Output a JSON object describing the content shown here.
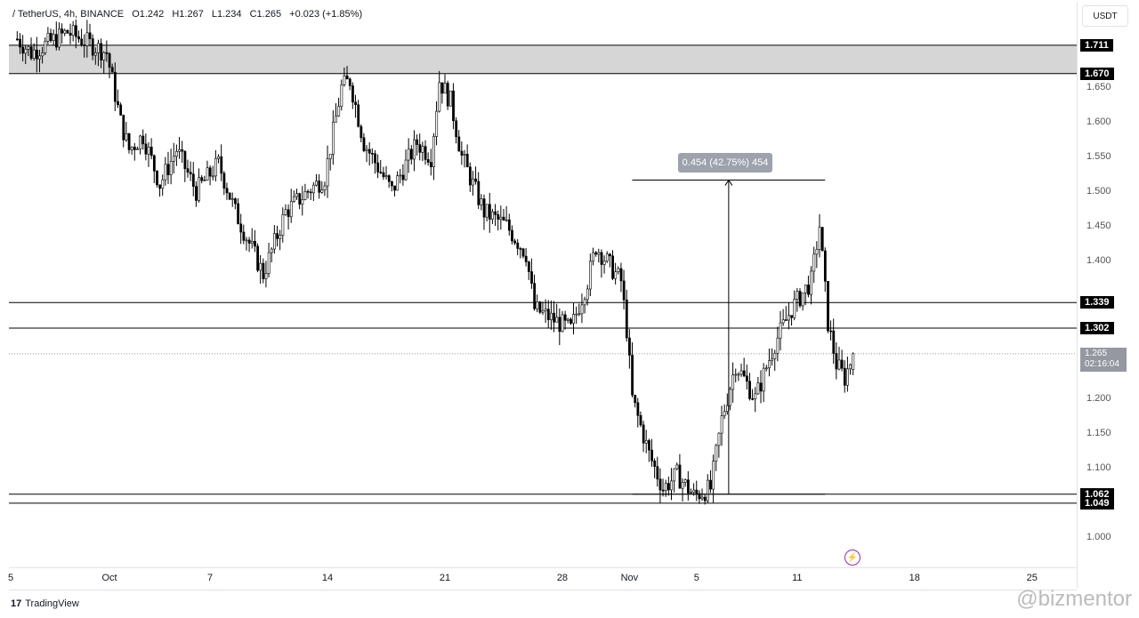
{
  "legend": {
    "symbol": "/ TetherUS, 4h, BINANCE",
    "open": "O1.242",
    "high": "H1.267",
    "low": "L1.234",
    "close": "C1.265",
    "change": "+0.023 (+1.85%)"
  },
  "price_axis": {
    "currency": "USDT",
    "current_price": "1.265",
    "countdown": "02:16:04"
  },
  "branding": {
    "logo": "TradingView",
    "watermark": "@bizmentor"
  },
  "measure": {
    "label": "0.454 (42.75%) 454"
  },
  "chart_data": {
    "type": "candlestick",
    "timeframe": "4h",
    "ylim": [
      0.95,
      1.76
    ],
    "y_ticks": [
      "1.650",
      "1.600",
      "1.550",
      "1.500",
      "1.450",
      "1.400",
      "1.200",
      "1.150",
      "1.100",
      "1.000"
    ],
    "x_ticks": [
      "5",
      "Oct",
      "7",
      "14",
      "21",
      "28",
      "Nov",
      "5",
      "11",
      "18",
      "25"
    ],
    "x_tick_dates": [
      "09-25",
      "10-01",
      "10-07",
      "10-14",
      "10-21",
      "10-28",
      "11-01",
      "11-05",
      "11-11",
      "11-18",
      "11-25"
    ],
    "horizontal_levels": [
      "1.711",
      "1.670",
      "1.339",
      "1.302",
      "1.062",
      "1.049"
    ],
    "zone": [
      1.67,
      1.711
    ],
    "measure_range": {
      "from": 1.062,
      "to": 1.516,
      "start": "11-01T04",
      "end": "11-12T16"
    },
    "last_candle": {
      "open": 1.242,
      "high": 1.267,
      "low": 1.234,
      "close": 1.265
    },
    "colors": {
      "candle": "#000000",
      "zone": "#d6d6d6",
      "line": "#000000",
      "current": "#9598a1",
      "accent": "#9c27b0"
    },
    "price_path": [
      [
        "09-25T12",
        1.72
      ],
      [
        "09-26T08",
        1.7
      ],
      [
        "09-28T12",
        1.73
      ],
      [
        "09-30T20",
        1.7
      ],
      [
        "10-01T16",
        1.6
      ],
      [
        "10-02T04",
        1.56
      ],
      [
        "10-03T00",
        1.58
      ],
      [
        "10-04T00",
        1.51
      ],
      [
        "10-05T00",
        1.56
      ],
      [
        "10-06T04",
        1.5
      ],
      [
        "10-07T12",
        1.54
      ],
      [
        "10-08T12",
        1.47
      ],
      [
        "10-10T04",
        1.38
      ],
      [
        "10-11T12",
        1.47
      ],
      [
        "10-12T20",
        1.5
      ],
      [
        "10-13T20",
        1.52
      ],
      [
        "10-14T20",
        1.65
      ],
      [
        "10-15T08",
        1.66
      ],
      [
        "10-16T04",
        1.57
      ],
      [
        "10-17T20",
        1.5
      ],
      [
        "10-19T08",
        1.57
      ],
      [
        "10-20T04",
        1.55
      ],
      [
        "10-20T16",
        1.66
      ],
      [
        "10-21T08",
        1.63
      ],
      [
        "10-22T00",
        1.55
      ],
      [
        "10-23T08",
        1.47
      ],
      [
        "10-24T16",
        1.45
      ],
      [
        "10-25T20",
        1.41
      ],
      [
        "10-26T08",
        1.33
      ],
      [
        "10-28T12",
        1.3
      ],
      [
        "10-29T12",
        1.37
      ],
      [
        "10-30T00",
        1.42
      ],
      [
        "10-31T12",
        1.37
      ],
      [
        "10-31T20",
        1.3
      ],
      [
        "11-01T04",
        1.2
      ],
      [
        "11-02T04",
        1.12
      ],
      [
        "11-03T00",
        1.07
      ],
      [
        "11-03T20",
        1.09
      ],
      [
        "11-04T20",
        1.06
      ],
      [
        "11-05T20",
        1.07
      ],
      [
        "11-06T12",
        1.17
      ],
      [
        "11-07T08",
        1.25
      ],
      [
        "11-08T12",
        1.2
      ],
      [
        "11-09T16",
        1.28
      ],
      [
        "11-10T16",
        1.33
      ],
      [
        "11-11T20",
        1.37
      ],
      [
        "11-12T08",
        1.45
      ],
      [
        "11-12T20",
        1.31
      ],
      [
        "11-13T08",
        1.25
      ],
      [
        "11-13T20",
        1.23
      ],
      [
        "11-14T08",
        1.265
      ]
    ]
  }
}
